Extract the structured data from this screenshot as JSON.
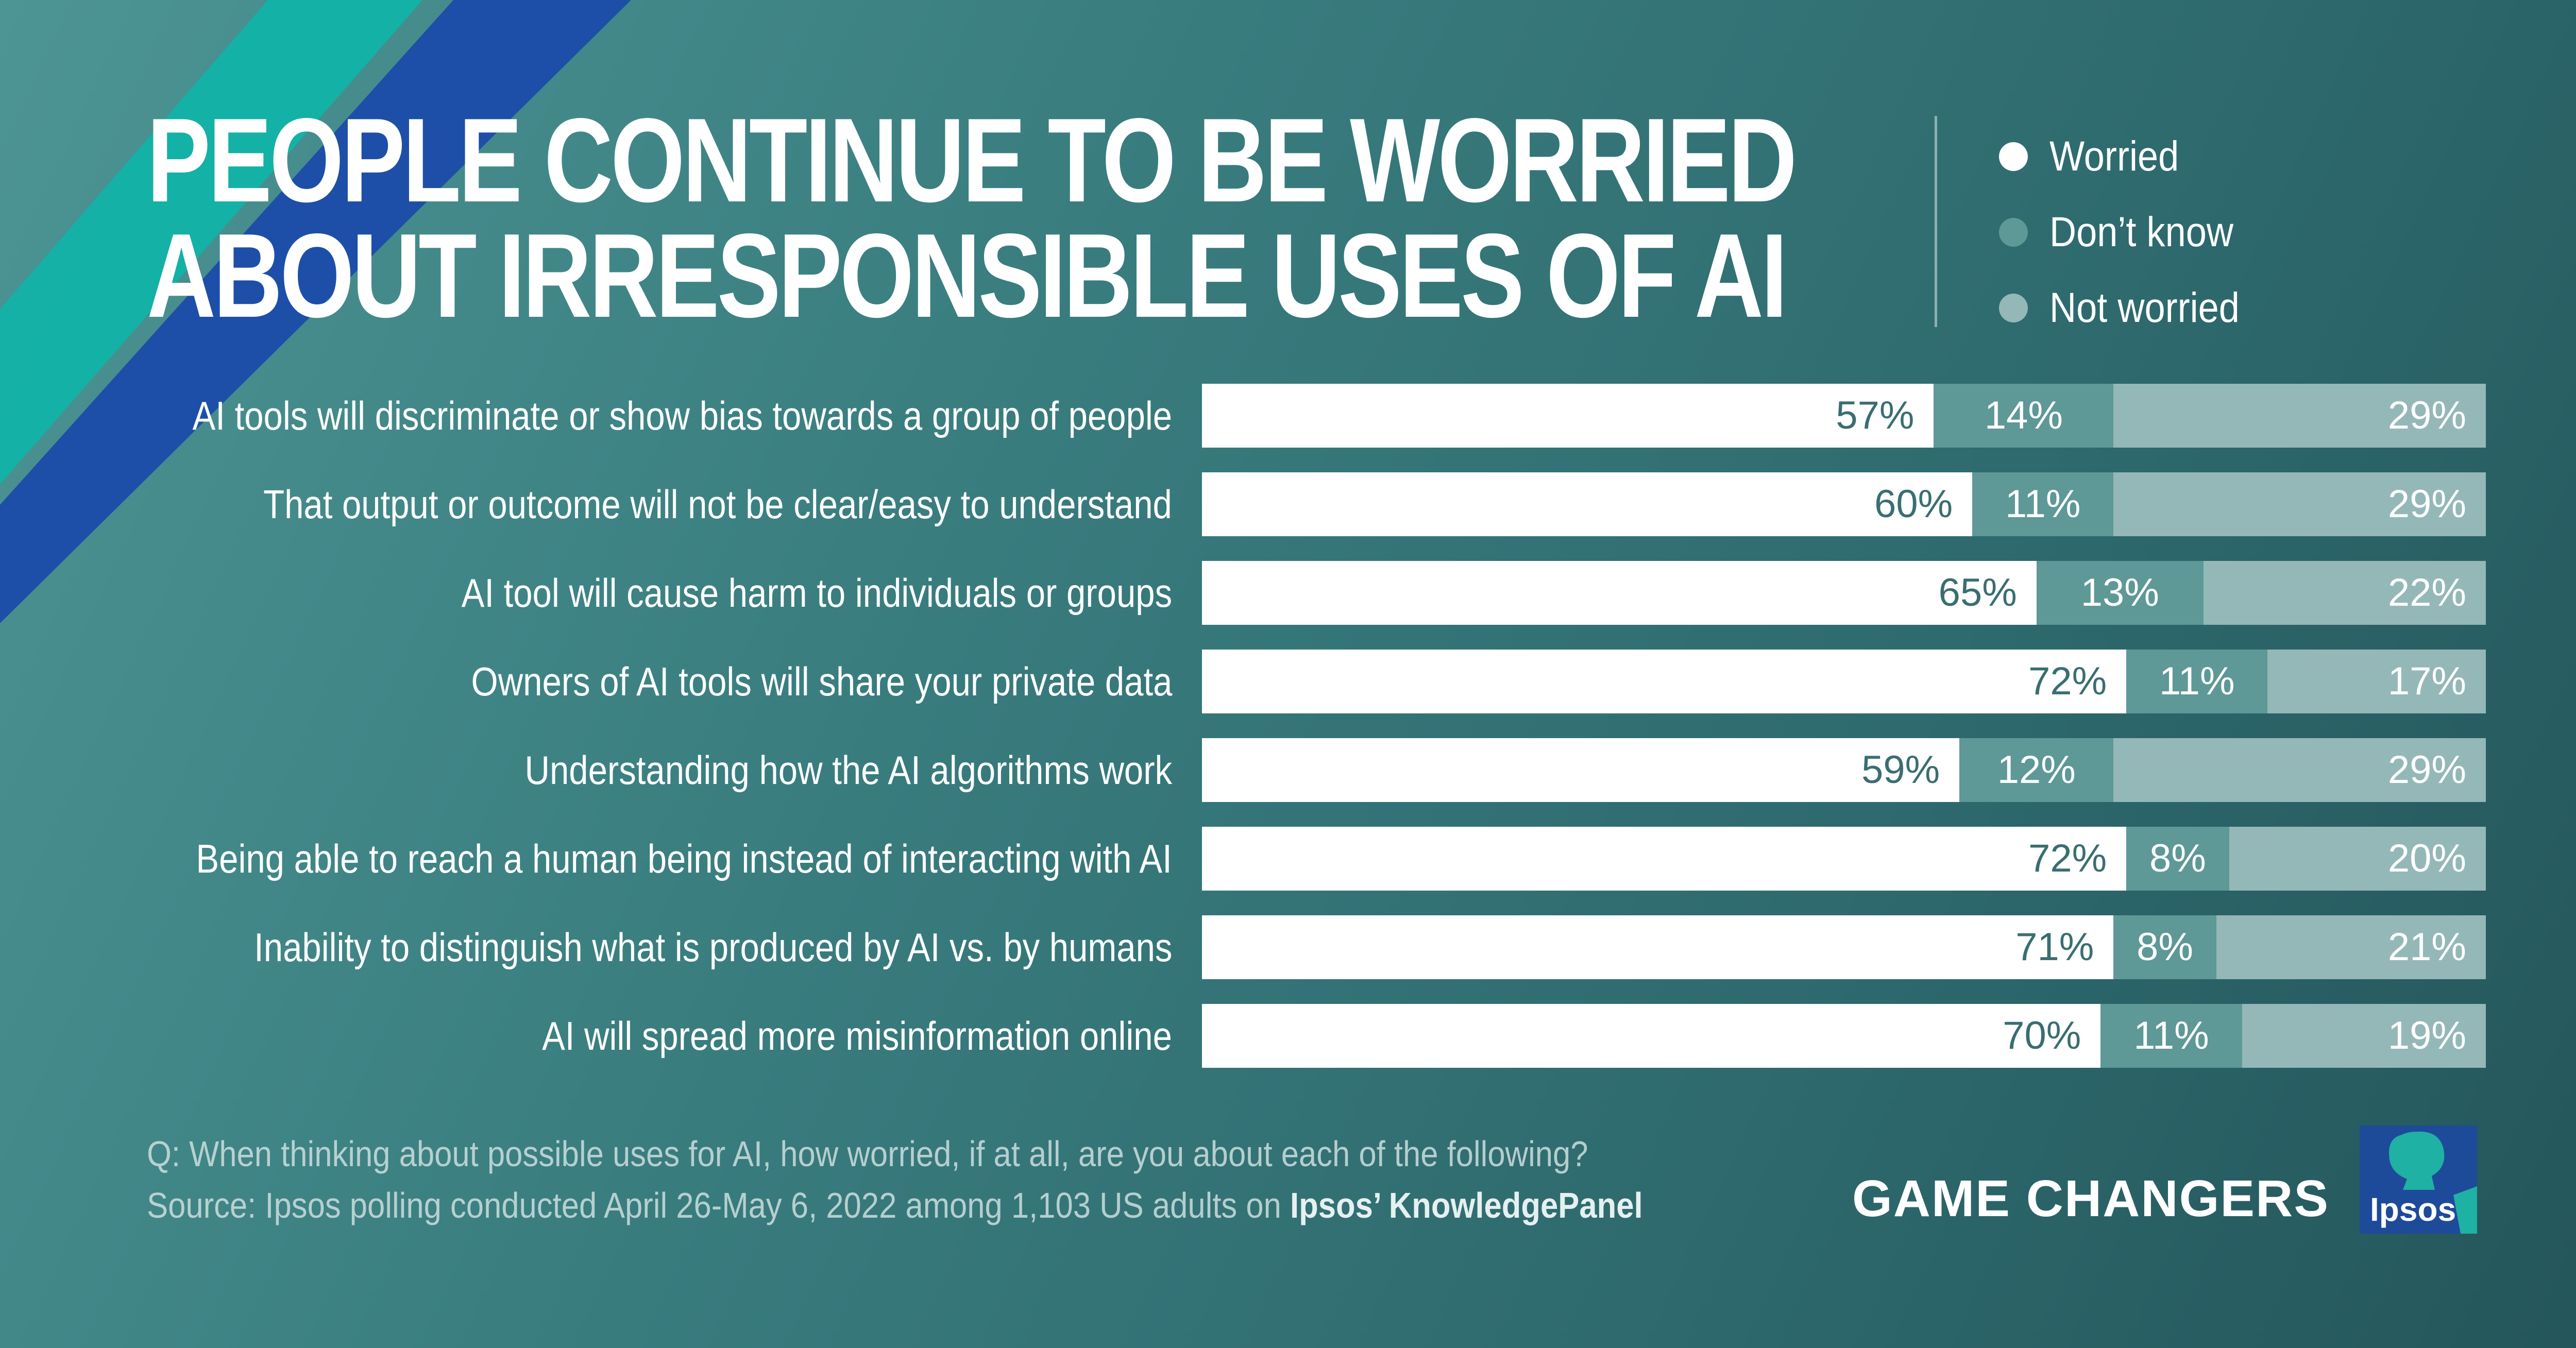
{
  "title": {
    "line1": "PEOPLE CONTINUE TO BE WORRIED",
    "line2": "ABOUT IRRESPONSIBLE USES OF AI"
  },
  "colors": {
    "worried": "#ffffff",
    "dont_know": "#5e9897",
    "not_worried": "#94b8b7",
    "background": "#3a7e80"
  },
  "legend": [
    {
      "label": "Worried",
      "color": "#ffffff"
    },
    {
      "label": "Don’t know",
      "color": "#5e9897"
    },
    {
      "label": "Not worried",
      "color": "#94b8b7"
    }
  ],
  "chart_data": {
    "type": "bar",
    "orientation": "horizontal",
    "stacked": true,
    "title": "PEOPLE CONTINUE TO BE WORRIED ABOUT IRRESPONSIBLE USES OF AI",
    "xlabel": "",
    "ylabel": "",
    "xlim": [
      0,
      100
    ],
    "unit": "%",
    "legend_position": "top-right",
    "categories": [
      "AI tools will discriminate or show bias towards a group of people",
      "That output or outcome will not be clear/easy to understand",
      "AI tool will cause harm to individuals or groups",
      "Owners of AI tools will share your private data",
      "Understanding how the AI algorithms work",
      "Being able to reach a human being instead of interacting with AI",
      "Inability to distinguish what is produced by AI vs. by humans",
      "AI will spread more misinformation online"
    ],
    "series": [
      {
        "name": "Worried",
        "values": [
          57,
          60,
          65,
          72,
          59,
          72,
          71,
          70
        ]
      },
      {
        "name": "Don’t know",
        "values": [
          14,
          11,
          13,
          11,
          12,
          8,
          8,
          11
        ]
      },
      {
        "name": "Not worried",
        "values": [
          29,
          29,
          22,
          17,
          29,
          20,
          21,
          19
        ]
      }
    ]
  },
  "footnote": {
    "question": "Q: When thinking about possible uses for AI, how worried, if at all, are you about each of the following?",
    "source_prefix": "Source: Ipsos polling conducted April 26-May 6, 2022 among 1,103 US adults on ",
    "source_bold": "Ipsos’ KnowledgePanel"
  },
  "brand": {
    "tagline": "GAME CHANGERS",
    "logo_text": "Ipsos"
  }
}
